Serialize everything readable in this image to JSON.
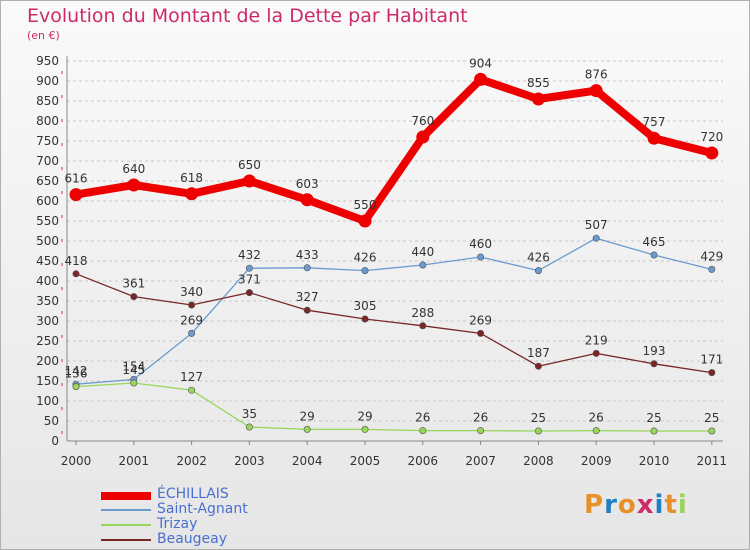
{
  "title": "Evolution du Montant de la Dette par Habitant",
  "subtitle": "(en €)",
  "logo_text": "Proxiti",
  "colors": {
    "title": "#cc2b6a",
    "axis_text": "#333333",
    "legend_text": "#4a6fd0",
    "grid": "#c8c8c8",
    "axis_marker": "#cc2b6a"
  },
  "chart_data": {
    "type": "line",
    "title": "Evolution du Montant de la Dette par Habitant",
    "subtitle": "(en €)",
    "x": [
      "2000",
      "2001",
      "2002",
      "2003",
      "2004",
      "2005",
      "2006",
      "2007",
      "2008",
      "2009",
      "2010",
      "2011"
    ],
    "ylim": [
      0,
      950
    ],
    "yticks": [
      0,
      50,
      100,
      150,
      200,
      250,
      300,
      350,
      400,
      450,
      500,
      550,
      600,
      650,
      700,
      750,
      800,
      850,
      900,
      950
    ],
    "grid": "horizontal dashed",
    "legend_position": "bottom-left",
    "series": [
      {
        "name": "ÉCHILLAIS",
        "color": "#ee0000",
        "emphasis": true,
        "values": [
          616,
          640,
          618,
          650,
          603,
          550,
          760,
          904,
          855,
          876,
          757,
          720
        ]
      },
      {
        "name": "Saint-Agnant",
        "color": "#6a9bd0",
        "emphasis": false,
        "values": [
          142,
          154,
          269,
          432,
          433,
          426,
          440,
          460,
          426,
          507,
          465,
          429
        ]
      },
      {
        "name": "Trizay",
        "color": "#99d55a",
        "emphasis": false,
        "values": [
          136,
          145,
          127,
          35,
          29,
          29,
          26,
          26,
          25,
          26,
          25,
          25
        ]
      },
      {
        "name": "Beaugeay",
        "color": "#7a2626",
        "emphasis": false,
        "values": [
          418,
          361,
          340,
          371,
          327,
          305,
          288,
          269,
          187,
          219,
          193,
          171
        ]
      }
    ]
  }
}
